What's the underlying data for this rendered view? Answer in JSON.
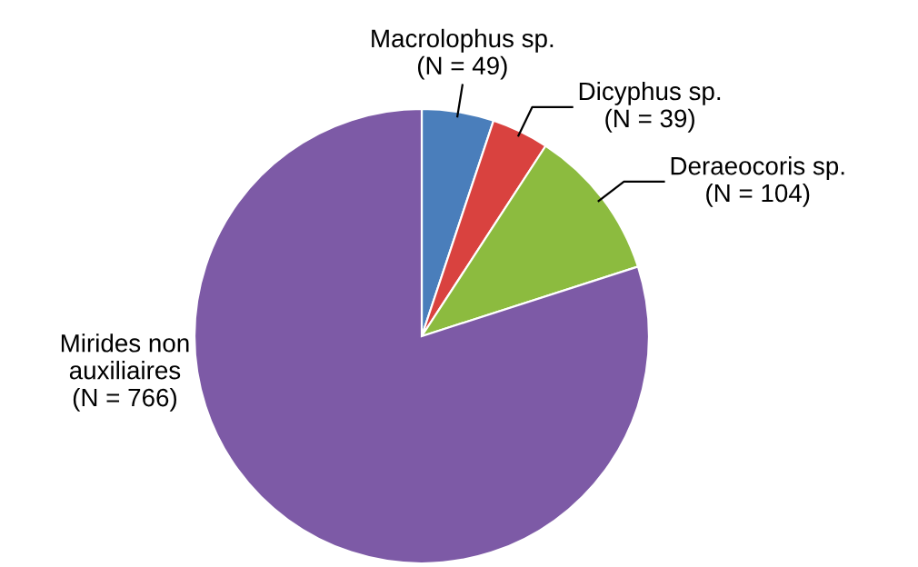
{
  "chart_data": {
    "type": "pie",
    "categories": [
      "Macrolophus sp.\n(N = 49)",
      "Dicyphus sp.\n(N = 39)",
      "Deraeocoris sp.\n(N = 104)",
      "Mirides non\nauxiliaires\n(N = 766)"
    ],
    "values": [
      49,
      39,
      104,
      766
    ],
    "colors": [
      "#4a7ebb",
      "#d9423f",
      "#8cbb3f",
      "#7d5aa6"
    ]
  }
}
